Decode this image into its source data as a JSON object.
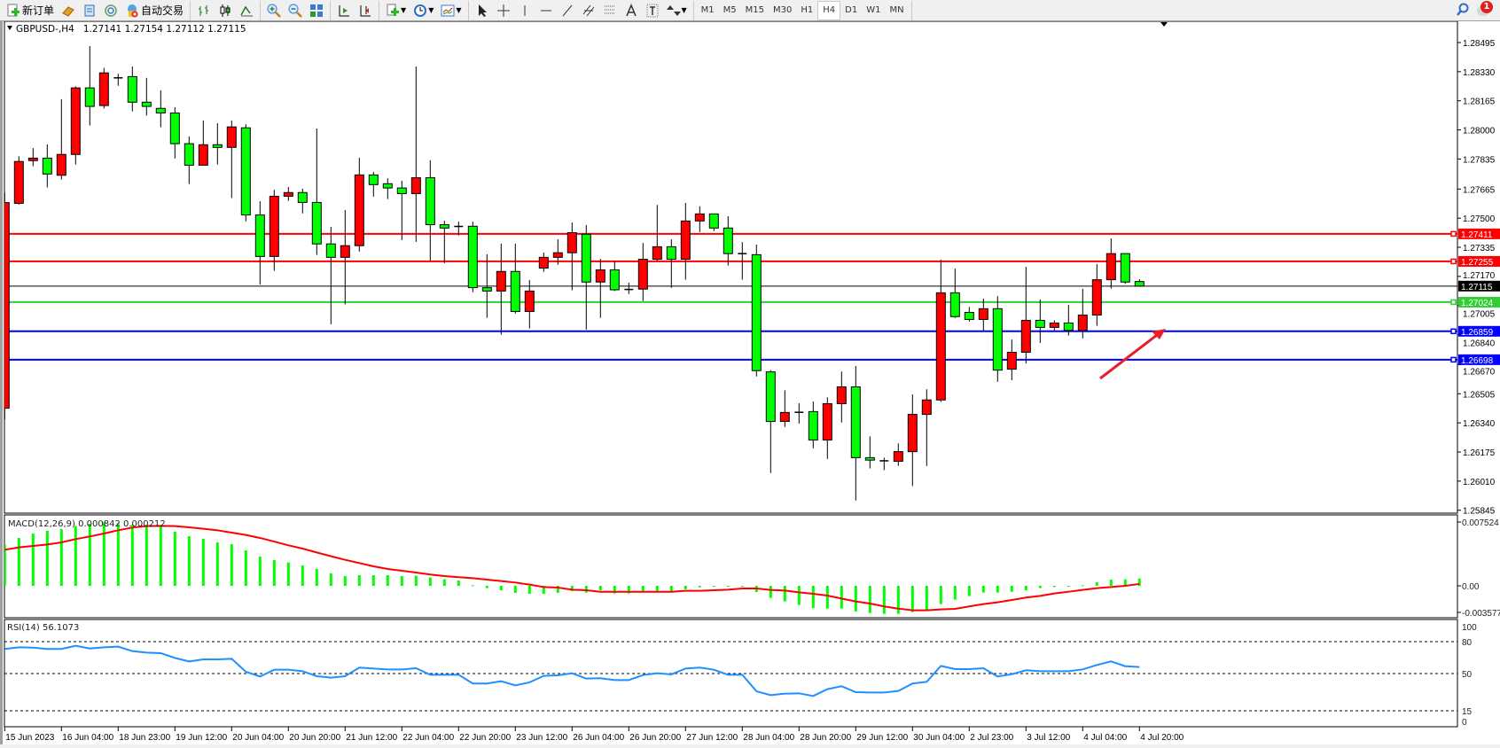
{
  "toolbar": {
    "new_order_label": "新订单",
    "auto_trading_label": "自动交易",
    "timeframes": [
      "M1",
      "M5",
      "M15",
      "M30",
      "H1",
      "H4",
      "D1",
      "W1",
      "MN"
    ],
    "active_timeframe": "H4",
    "notification_count": "1",
    "icons": [
      "new-order-icon",
      "gold-bars-icon",
      "market-watch-icon",
      "signals-icon",
      "auto-trading-icon",
      "bar-chart-icon",
      "candlestick-icon",
      "line-chart-icon",
      "zoom-in-icon",
      "zoom-out-icon",
      "tile-windows-icon",
      "autoscroll-icon",
      "chart-shift-icon",
      "add-indicator-icon",
      "periods-icon",
      "templates-icon",
      "cursor-icon",
      "crosshair-icon",
      "vertical-line-icon",
      "horizontal-line-icon",
      "trendline-icon",
      "equidistant-channel-icon",
      "fibonacci-icon",
      "text-icon",
      "text-label-icon",
      "arrows-icon",
      "search-icon",
      "notification-icon"
    ]
  },
  "chart_header": {
    "symbol": "GBPUSD-,H4",
    "ohlc": "1.27141 1.27154 1.27112 1.27115"
  },
  "colors": {
    "bull": "#ff0000",
    "bear": "#00ff00",
    "macd_hist": "#00ff00",
    "macd_signal": "#ff0000",
    "rsi": "#1e90ff",
    "arrow": "#e8202a"
  },
  "price_axis": [
    "1.28495",
    "1.28330",
    "1.28165",
    "1.28000",
    "1.27835",
    "1.27665",
    "1.27500",
    "1.27335",
    "1.27170",
    "1.27005",
    "1.26840",
    "1.26670",
    "1.26505",
    "1.26340",
    "1.26175",
    "1.26010",
    "1.25845"
  ],
  "levels": [
    {
      "price": "1.27411",
      "color": "#ff0000"
    },
    {
      "price": "1.27255",
      "color": "#ff0000"
    },
    {
      "price": "1.27024",
      "color": "#32cd32"
    },
    {
      "price": "1.26859",
      "color": "#0000ff"
    },
    {
      "price": "1.26698",
      "color": "#0000ff"
    }
  ],
  "current_price": "1.27115",
  "time_axis": [
    "15 Jun 2023",
    "16 Jun 04:00",
    "18 Jun 23:00",
    "19 Jun 12:00",
    "20 Jun 04:00",
    "20 Jun 20:00",
    "21 Jun 12:00",
    "22 Jun 04:00",
    "22 Jun 20:00",
    "23 Jun 12:00",
    "26 Jun 04:00",
    "26 Jun 20:00",
    "27 Jun 12:00",
    "28 Jun 04:00",
    "28 Jun 20:00",
    "29 Jun 12:00",
    "30 Jun 04:00",
    "2 Jul 23:00",
    "3 Jul 12:00",
    "4 Jul 04:00",
    "4 Jul 20:00"
  ],
  "chart_data": [
    {
      "type": "candlestick",
      "title": "GBPUSD-,H4",
      "ylim": [
        1.25845,
        1.28495
      ],
      "candles_ohlc": [
        [
          1.26423,
          1.27643,
          1.26359,
          1.27588
        ],
        [
          1.27584,
          1.27851,
          1.27577,
          1.27821
        ],
        [
          1.27826,
          1.27897,
          1.27794,
          1.2784
        ],
        [
          1.2784,
          1.27918,
          1.27674,
          1.2775
        ],
        [
          1.27743,
          1.28174,
          1.27719,
          1.27861
        ],
        [
          1.27861,
          1.28247,
          1.27804,
          1.28238
        ],
        [
          1.28238,
          1.28475,
          1.28025,
          1.28133
        ],
        [
          1.28138,
          1.28351,
          1.28121,
          1.28323
        ],
        [
          1.28295,
          1.28318,
          1.2825,
          1.28295
        ],
        [
          1.28302,
          1.28359,
          1.28105,
          1.28157
        ],
        [
          1.28157,
          1.28295,
          1.28081,
          1.28133
        ],
        [
          1.28122,
          1.28224,
          1.28015,
          1.28096
        ],
        [
          1.28096,
          1.28129,
          1.27838,
          1.27922
        ],
        [
          1.27922,
          1.27963,
          1.27693,
          1.278
        ],
        [
          1.278,
          1.28053,
          1.278,
          1.27916
        ],
        [
          1.27916,
          1.28038,
          1.27804,
          1.27901
        ],
        [
          1.27901,
          1.28053,
          1.27614,
          1.28017
        ],
        [
          1.28012,
          1.28032,
          1.27482,
          1.27518
        ],
        [
          1.27518,
          1.27596,
          1.27124,
          1.27283
        ],
        [
          1.27283,
          1.2766,
          1.27202,
          1.27624
        ],
        [
          1.27624,
          1.27676,
          1.27598,
          1.27645
        ],
        [
          1.27645,
          1.27667,
          1.27527,
          1.27589
        ],
        [
          1.27589,
          1.28008,
          1.27292,
          1.27354
        ],
        [
          1.27354,
          1.27451,
          1.26899,
          1.27278
        ],
        [
          1.27278,
          1.27546,
          1.27011,
          1.27344
        ],
        [
          1.27344,
          1.27842,
          1.27311,
          1.27745
        ],
        [
          1.27745,
          1.27762,
          1.27622,
          1.2769
        ],
        [
          1.27695,
          1.27726,
          1.27608,
          1.27671
        ],
        [
          1.27671,
          1.27712,
          1.27376,
          1.27639
        ],
        [
          1.27639,
          1.28359,
          1.27366,
          1.27729
        ],
        [
          1.27729,
          1.27828,
          1.27259,
          1.27463
        ],
        [
          1.27463,
          1.27485,
          1.27245,
          1.27444
        ],
        [
          1.27453,
          1.2748,
          1.27402,
          1.27453
        ],
        [
          1.27454,
          1.2748,
          1.27081,
          1.27106
        ],
        [
          1.27106,
          1.27295,
          1.26935,
          1.27087
        ],
        [
          1.27087,
          1.27356,
          1.2684,
          1.27198
        ],
        [
          1.27198,
          1.27356,
          1.26959,
          1.26971
        ],
        [
          1.26971,
          1.2715,
          1.26875,
          1.27087
        ],
        [
          1.27217,
          1.27305,
          1.27196,
          1.27278
        ],
        [
          1.27278,
          1.2738,
          1.27236,
          1.27304
        ],
        [
          1.27304,
          1.27475,
          1.27091,
          1.27418
        ],
        [
          1.27409,
          1.27461,
          1.26869,
          1.27138
        ],
        [
          1.27138,
          1.27269,
          1.26935,
          1.27207
        ],
        [
          1.27207,
          1.27254,
          1.27087,
          1.27094
        ],
        [
          1.27096,
          1.27134,
          1.2707,
          1.27096
        ],
        [
          1.27098,
          1.27359,
          1.2703,
          1.27267
        ],
        [
          1.27267,
          1.27575,
          1.27259,
          1.27338
        ],
        [
          1.27338,
          1.2738,
          1.27105,
          1.27267
        ],
        [
          1.27267,
          1.27586,
          1.27151,
          1.27484
        ],
        [
          1.27484,
          1.27567,
          1.27421,
          1.27524
        ],
        [
          1.27524,
          1.27524,
          1.27427,
          1.27444
        ],
        [
          1.27444,
          1.27511,
          1.27231,
          1.27299
        ],
        [
          1.27299,
          1.27364,
          1.27151,
          1.27299
        ],
        [
          1.27293,
          1.2735,
          1.26603,
          1.26636
        ],
        [
          1.26629,
          1.26639,
          1.26056,
          1.26348
        ],
        [
          1.26348,
          1.26525,
          1.26317,
          1.26399
        ],
        [
          1.264,
          1.26451,
          1.26336,
          1.264
        ],
        [
          1.26404,
          1.26461,
          1.26196,
          1.26243
        ],
        [
          1.26243,
          1.26485,
          1.26136,
          1.26449
        ],
        [
          1.26449,
          1.26631,
          1.26342,
          1.26544
        ],
        [
          1.26544,
          1.26662,
          1.259,
          1.26143
        ],
        [
          1.26143,
          1.26264,
          1.26082,
          1.26129
        ],
        [
          1.26125,
          1.26143,
          1.26072,
          1.26125
        ],
        [
          1.26122,
          1.26224,
          1.26096,
          1.26177
        ],
        [
          1.26177,
          1.26501,
          1.25982,
          1.26388
        ],
        [
          1.26388,
          1.2653,
          1.26096,
          1.2647
        ],
        [
          1.2647,
          1.27264,
          1.26459,
          1.27077
        ],
        [
          1.27077,
          1.27214,
          1.26935,
          1.26942
        ],
        [
          1.26966,
          1.26997,
          1.26914,
          1.26926
        ],
        [
          1.26926,
          1.27044,
          1.26862,
          1.26987
        ],
        [
          1.26987,
          1.27058,
          1.26573,
          1.26639
        ],
        [
          1.26644,
          1.26812,
          1.26582,
          1.2674
        ],
        [
          1.2674,
          1.27224,
          1.26676,
          1.26921
        ],
        [
          1.26921,
          1.27039,
          1.26793,
          1.26881
        ],
        [
          1.26881,
          1.26921,
          1.26864,
          1.26906
        ],
        [
          1.26906,
          1.27008,
          1.26835,
          1.26864
        ],
        [
          1.26864,
          1.271,
          1.26819,
          1.26951
        ],
        [
          1.26951,
          1.2724,
          1.2689,
          1.27151
        ],
        [
          1.27151,
          1.27385,
          1.27101,
          1.27299
        ],
        [
          1.27299,
          1.27299,
          1.27127,
          1.27138
        ],
        [
          1.27141,
          1.27154,
          1.27112,
          1.27115
        ]
      ]
    },
    {
      "type": "bar+line",
      "title": "MACD(12,26,9) 0.000842 0.000212",
      "ylim": [
        -0.003577,
        0.007524
      ],
      "axis_labels": [
        "0.007524",
        "0.00",
        "-0.003577"
      ],
      "histogram": [
        0.00478,
        0.00557,
        0.00608,
        0.00639,
        0.0066,
        0.00694,
        0.00722,
        0.00739,
        0.00728,
        0.00708,
        0.00708,
        0.00687,
        0.00629,
        0.00577,
        0.00546,
        0.00505,
        0.00484,
        0.00412,
        0.0034,
        0.00299,
        0.00271,
        0.00237,
        0.00196,
        0.00144,
        0.00113,
        0.00124,
        0.00124,
        0.00124,
        0.00113,
        0.00117,
        0.00096,
        0.00076,
        0.00062,
        7e-05,
        -0.00027,
        -0.00052,
        -0.00082,
        -0.00093,
        -0.00093,
        -0.00082,
        -0.00062,
        -0.00079,
        -0.00052,
        -0.00089,
        -0.00089,
        -0.00062,
        -0.00062,
        -0.00062,
        -0.00041,
        -0.00017,
        -0.0001,
        -0.0001,
        -7e-05,
        -0.00072,
        -0.00141,
        -0.00182,
        -0.00223,
        -0.00258,
        -0.00265,
        -0.00265,
        -0.00299,
        -0.00316,
        -0.00326,
        -0.00326,
        -0.00306,
        -0.00282,
        -0.00213,
        -0.00161,
        -0.0012,
        -0.00079,
        -0.00079,
        -0.00069,
        -0.00052,
        -0.00027,
        -0.00014,
        -7e-05,
        7e-05,
        0.00041,
        0.00072,
        0.00076,
        0.000842
      ],
      "signal": [
        0.00419,
        0.00447,
        0.00464,
        0.00481,
        0.00505,
        0.00543,
        0.00574,
        0.00608,
        0.00646,
        0.00677,
        0.00694,
        0.00697,
        0.00694,
        0.0068,
        0.00663,
        0.00646,
        0.00618,
        0.00591,
        0.00557,
        0.00515,
        0.00471,
        0.00433,
        0.00388,
        0.00344,
        0.00302,
        0.00265,
        0.00227,
        0.00196,
        0.00175,
        0.00155,
        0.00131,
        0.00113,
        0.001,
        0.00089,
        0.00072,
        0.00055,
        0.00038,
        0.00014,
        -0.00014,
        -0.00021,
        -0.00045,
        -0.00052,
        -0.00069,
        -0.00069,
        -0.00069,
        -0.00069,
        -0.00069,
        -0.00069,
        -0.00058,
        -0.00058,
        -0.00052,
        -0.00045,
        -0.00031,
        -0.00031,
        -0.00048,
        -0.00055,
        -0.00076,
        -0.00093,
        -0.00113,
        -0.00148,
        -0.00182,
        -0.00206,
        -0.0024,
        -0.00265,
        -0.00285,
        -0.00285,
        -0.00275,
        -0.00268,
        -0.0024,
        -0.00213,
        -0.00192,
        -0.00165,
        -0.00137,
        -0.00117,
        -0.00089,
        -0.00069,
        -0.00048,
        -0.00027,
        -0.00014,
        0.0,
        0.000212
      ]
    },
    {
      "type": "line",
      "title": "RSI(14) 56.1073",
      "ylim": [
        0,
        100
      ],
      "axis_labels": [
        "100",
        "80",
        "50",
        "15",
        "0"
      ],
      "levels": [
        80,
        50,
        15
      ],
      "values": [
        73.1,
        74.7,
        74.4,
        73.1,
        73.1,
        76.1,
        73.6,
        74.7,
        75.3,
        71.1,
        69.7,
        69.2,
        64.7,
        61.4,
        63.3,
        63.3,
        63.9,
        51.7,
        47.2,
        53.6,
        53.6,
        52.2,
        47.5,
        46.1,
        47.5,
        55.6,
        54.7,
        53.9,
        53.9,
        55.0,
        48.9,
        48.9,
        48.9,
        40.6,
        40.6,
        42.8,
        38.9,
        41.7,
        47.8,
        48.3,
        50.3,
        45.3,
        45.6,
        43.9,
        43.9,
        48.6,
        50.3,
        49.2,
        54.7,
        55.6,
        53.6,
        48.9,
        48.9,
        33.3,
        29.7,
        31.1,
        31.4,
        28.9,
        35.3,
        38.1,
        32.5,
        32.2,
        32.2,
        33.6,
        40.6,
        42.2,
        57.2,
        54.2,
        54.2,
        55.0,
        47.2,
        49.4,
        53.1,
        52.2,
        52.2,
        52.2,
        53.9,
        58.1,
        61.4,
        56.9,
        56.1073
      ]
    }
  ]
}
